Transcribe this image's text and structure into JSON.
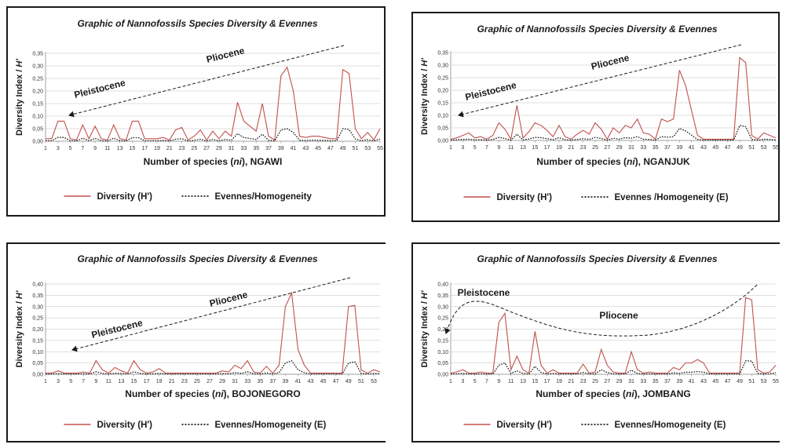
{
  "chart_data": [
    {
      "type": "line",
      "title": "Graphic of Nannofossils  Species Diversity & Evennes",
      "xlabel_prefix": "Number of species (",
      "xlabel_var": "ni",
      "xlabel_suffix": "),  NGAWI",
      "ylabel_prefix": "Diversity Index / ",
      "ylabel_var": "H'",
      "ylim": [
        0,
        0.35
      ],
      "yticks": [
        "0,00",
        "0,05",
        "0,10",
        "0,15",
        "0,20",
        "0,25",
        "0,30",
        "0,35"
      ],
      "xrange": [
        1,
        55
      ],
      "xticks": [
        "1",
        "3",
        "5",
        "7",
        "9",
        "11",
        "13",
        "15",
        "17",
        "19",
        "21",
        "23",
        "25",
        "27",
        "29",
        "31",
        "33",
        "35",
        "37",
        "39",
        "41",
        "43",
        "45",
        "47",
        "49",
        "51",
        "53",
        "55"
      ],
      "annotations": [
        "Pleistocene",
        "Pliocene"
      ],
      "legend": [
        "Diversity (H')",
        "Evennes/Homogeneity"
      ],
      "x": [
        1,
        2,
        3,
        4,
        5,
        6,
        7,
        8,
        9,
        10,
        11,
        12,
        13,
        14,
        15,
        16,
        17,
        18,
        19,
        20,
        21,
        22,
        23,
        24,
        25,
        26,
        27,
        28,
        29,
        30,
        31,
        32,
        33,
        34,
        35,
        36,
        37,
        38,
        39,
        40,
        41,
        42,
        43,
        44,
        45,
        46,
        47,
        48,
        49,
        50,
        51,
        52,
        53,
        54,
        55
      ],
      "series": [
        {
          "name": "Diversity (H')",
          "values": [
            0.01,
            0.01,
            0.08,
            0.08,
            0.01,
            0.005,
            0.065,
            0.01,
            0.06,
            0.01,
            0.005,
            0.065,
            0.01,
            0.005,
            0.08,
            0.08,
            0.01,
            0.01,
            0.01,
            0.015,
            0.005,
            0.045,
            0.055,
            0.005,
            0.02,
            0.045,
            0.005,
            0.04,
            0.01,
            0.04,
            0.02,
            0.155,
            0.08,
            0.06,
            0.04,
            0.15,
            0.02,
            0.005,
            0.26,
            0.295,
            0.2,
            0.02,
            0.015,
            0.02,
            0.02,
            0.015,
            0.01,
            0.01,
            0.285,
            0.27,
            0.05,
            0.01,
            0.035,
            0.005,
            0.05
          ]
        },
        {
          "name": "Evennes/Homogeneity",
          "values": [
            0.002,
            0.002,
            0.015,
            0.015,
            0.002,
            0.001,
            0.012,
            0.002,
            0.011,
            0.002,
            0.001,
            0.012,
            0.002,
            0.001,
            0.014,
            0.014,
            0.002,
            0.002,
            0.002,
            0.003,
            0.001,
            0.008,
            0.01,
            0.001,
            0.004,
            0.008,
            0.001,
            0.007,
            0.002,
            0.007,
            0.004,
            0.03,
            0.015,
            0.011,
            0.007,
            0.028,
            0.004,
            0.001,
            0.045,
            0.05,
            0.035,
            0.004,
            0.003,
            0.004,
            0.004,
            0.003,
            0.002,
            0.002,
            0.05,
            0.047,
            0.009,
            0.002,
            0.006,
            0.001,
            0.009
          ]
        }
      ]
    },
    {
      "type": "line",
      "title": "Graphic of Nannofossils  Species Diversity & Evennes",
      "xlabel_prefix": "Number of species (",
      "xlabel_var": "ni",
      "xlabel_suffix": "), NGANJUK",
      "ylabel_prefix": "Diversity Index / ",
      "ylabel_var": "H'",
      "ylim": [
        0,
        0.35
      ],
      "yticks": [
        "0,00",
        "0,05",
        "0,10",
        "0,15",
        "0,20",
        "0,25",
        "0,30",
        "0,35"
      ],
      "xrange": [
        1,
        55
      ],
      "xticks": [
        "1",
        "3",
        "5",
        "7",
        "9",
        "11",
        "13",
        "15",
        "17",
        "19",
        "21",
        "23",
        "25",
        "27",
        "29",
        "31",
        "33",
        "35",
        "37",
        "39",
        "41",
        "43",
        "45",
        "47",
        "49",
        "51",
        "53",
        "55"
      ],
      "annotations": [
        "Pleistocene",
        "Pliocene"
      ],
      "legend": [
        "Diversity (H')",
        "Evennes /Homogeneity (E)"
      ],
      "x": [
        1,
        2,
        3,
        4,
        5,
        6,
        7,
        8,
        9,
        10,
        11,
        12,
        13,
        14,
        15,
        16,
        17,
        18,
        19,
        20,
        21,
        22,
        23,
        24,
        25,
        26,
        27,
        28,
        29,
        30,
        31,
        32,
        33,
        34,
        35,
        36,
        37,
        38,
        39,
        40,
        41,
        42,
        43,
        44,
        45,
        46,
        47,
        48,
        49,
        50,
        51,
        52,
        53,
        54,
        55
      ],
      "series": [
        {
          "name": "Diversity (H')",
          "values": [
            0.005,
            0.01,
            0.02,
            0.03,
            0.01,
            0.015,
            0.005,
            0.02,
            0.07,
            0.045,
            0.005,
            0.14,
            0.01,
            0.035,
            0.07,
            0.06,
            0.04,
            0.015,
            0.06,
            0.015,
            0.005,
            0.025,
            0.04,
            0.025,
            0.07,
            0.045,
            0.005,
            0.05,
            0.03,
            0.06,
            0.05,
            0.085,
            0.03,
            0.025,
            0.005,
            0.085,
            0.075,
            0.085,
            0.28,
            0.22,
            0.12,
            0.02,
            0.005,
            0.005,
            0.005,
            0.005,
            0.005,
            0.005,
            0.33,
            0.31,
            0.02,
            0.005,
            0.03,
            0.02,
            0.01
          ]
        },
        {
          "name": "Evennes /Homogeneity (E)",
          "values": [
            0.001,
            0.002,
            0.004,
            0.005,
            0.002,
            0.003,
            0.001,
            0.004,
            0.012,
            0.008,
            0.001,
            0.025,
            0.002,
            0.006,
            0.012,
            0.011,
            0.007,
            0.003,
            0.011,
            0.003,
            0.001,
            0.004,
            0.007,
            0.004,
            0.012,
            0.008,
            0.001,
            0.009,
            0.005,
            0.011,
            0.009,
            0.015,
            0.005,
            0.004,
            0.001,
            0.015,
            0.013,
            0.015,
            0.048,
            0.038,
            0.021,
            0.004,
            0.001,
            0.001,
            0.001,
            0.001,
            0.001,
            0.001,
            0.06,
            0.055,
            0.004,
            0.001,
            0.005,
            0.004,
            0.002
          ]
        }
      ]
    },
    {
      "type": "line",
      "title": "Graphic of Nannofossils  Species Diversity & Evennes",
      "xlabel_prefix": "Number of species (",
      "xlabel_var": "ni",
      "xlabel_suffix": "), BOJONEGORO",
      "ylabel_prefix": "Diversity Index / ",
      "ylabel_var": "H'",
      "ylim": [
        0,
        0.4
      ],
      "yticks": [
        "0,00",
        "0,05",
        "0,10",
        "0,15",
        "0,20",
        "0,25",
        "0,30",
        "0,35",
        "0,40"
      ],
      "xrange": [
        1,
        54
      ],
      "xticks": [
        "1",
        "3",
        "5",
        "7",
        "9",
        "11",
        "13",
        "15",
        "17",
        "19",
        "21",
        "23",
        "25",
        "27",
        "29",
        "31",
        "33",
        "35",
        "37",
        "39",
        "41",
        "43",
        "45",
        "47",
        "49",
        "51",
        "53"
      ],
      "annotations": [
        "Pleistocene",
        "Pliocene"
      ],
      "legend": [
        "Diversity (H')",
        "Evennes/Homogeneity (E)"
      ],
      "x": [
        1,
        2,
        3,
        4,
        5,
        6,
        7,
        8,
        9,
        10,
        11,
        12,
        13,
        14,
        15,
        16,
        17,
        18,
        19,
        20,
        21,
        22,
        23,
        24,
        25,
        26,
        27,
        28,
        29,
        30,
        31,
        32,
        33,
        34,
        35,
        36,
        37,
        38,
        39,
        40,
        41,
        42,
        43,
        44,
        45,
        46,
        47,
        48,
        49,
        50,
        51,
        52,
        53,
        54
      ],
      "series": [
        {
          "name": "Diversity (H')",
          "values": [
            0.005,
            0.005,
            0.015,
            0.005,
            0.005,
            0.005,
            0.01,
            0.005,
            0.06,
            0.02,
            0.005,
            0.03,
            0.015,
            0.005,
            0.06,
            0.02,
            0.005,
            0.01,
            0.025,
            0.005,
            0.005,
            0.005,
            0.005,
            0.005,
            0.005,
            0.005,
            0.005,
            0.005,
            0.015,
            0.01,
            0.04,
            0.025,
            0.06,
            0.01,
            0.005,
            0.035,
            0.005,
            0.04,
            0.3,
            0.36,
            0.11,
            0.04,
            0.005,
            0.005,
            0.005,
            0.005,
            0.005,
            0.005,
            0.3,
            0.305,
            0.02,
            0.005,
            0.02,
            0.01
          ]
        },
        {
          "name": "Evennes/Homogeneity (E)",
          "values": [
            0.001,
            0.001,
            0.003,
            0.001,
            0.001,
            0.001,
            0.002,
            0.001,
            0.011,
            0.004,
            0.001,
            0.005,
            0.003,
            0.001,
            0.011,
            0.004,
            0.001,
            0.002,
            0.004,
            0.001,
            0.001,
            0.001,
            0.001,
            0.001,
            0.001,
            0.001,
            0.001,
            0.001,
            0.003,
            0.002,
            0.007,
            0.004,
            0.011,
            0.002,
            0.001,
            0.006,
            0.001,
            0.007,
            0.05,
            0.06,
            0.02,
            0.007,
            0.001,
            0.001,
            0.001,
            0.001,
            0.001,
            0.001,
            0.05,
            0.055,
            0.004,
            0.001,
            0.004,
            0.002
          ]
        }
      ]
    },
    {
      "type": "line",
      "title": "Graphic of Nannofossils  Species Diversity & Evennes",
      "xlabel_prefix": "Number of species (",
      "xlabel_var": "ni",
      "xlabel_suffix": "), JOMBANG",
      "ylabel_prefix": "Diversity Index / ",
      "ylabel_var": "H'",
      "ylim": [
        0,
        0.4
      ],
      "yticks": [
        "0,00",
        "0,05",
        "0,10",
        "0,15",
        "0,20",
        "0,25",
        "0,30",
        "0,35",
        "0,40"
      ],
      "xrange": [
        1,
        55
      ],
      "xticks": [
        "1",
        "3",
        "5",
        "7",
        "9",
        "11",
        "13",
        "15",
        "17",
        "19",
        "21",
        "23",
        "25",
        "27",
        "29",
        "31",
        "33",
        "35",
        "37",
        "39",
        "41",
        "43",
        "45",
        "47",
        "49",
        "51",
        "53",
        "55"
      ],
      "annotations": [
        "Pleistocene",
        "Pliocene"
      ],
      "legend": [
        "Diversity (H')",
        "Evennes/Homogeneity (E)"
      ],
      "x": [
        1,
        2,
        3,
        4,
        5,
        6,
        7,
        8,
        9,
        10,
        11,
        12,
        13,
        14,
        15,
        16,
        17,
        18,
        19,
        20,
        21,
        22,
        23,
        24,
        25,
        26,
        27,
        28,
        29,
        30,
        31,
        32,
        33,
        34,
        35,
        36,
        37,
        38,
        39,
        40,
        41,
        42,
        43,
        44,
        45,
        46,
        47,
        48,
        49,
        50,
        51,
        52,
        53,
        54,
        55
      ],
      "series": [
        {
          "name": "Diversity (H')",
          "values": [
            0.005,
            0.01,
            0.02,
            0.005,
            0.005,
            0.01,
            0.005,
            0.005,
            0.23,
            0.27,
            0.02,
            0.08,
            0.02,
            0.005,
            0.19,
            0.04,
            0.005,
            0.02,
            0.005,
            0.005,
            0.005,
            0.005,
            0.045,
            0.005,
            0.01,
            0.11,
            0.04,
            0.01,
            0.005,
            0.005,
            0.1,
            0.02,
            0.005,
            0.01,
            0.005,
            0.005,
            0.005,
            0.03,
            0.02,
            0.05,
            0.05,
            0.065,
            0.05,
            0.005,
            0.005,
            0.005,
            0.005,
            0.005,
            0.005,
            0.34,
            0.33,
            0.02,
            0.005,
            0.01,
            0.04
          ]
        },
        {
          "name": "Evennes/Homogeneity (E)",
          "values": [
            0.001,
            0.002,
            0.004,
            0.001,
            0.001,
            0.002,
            0.001,
            0.001,
            0.04,
            0.05,
            0.004,
            0.015,
            0.004,
            0.001,
            0.035,
            0.008,
            0.001,
            0.004,
            0.001,
            0.001,
            0.001,
            0.001,
            0.008,
            0.001,
            0.002,
            0.02,
            0.008,
            0.002,
            0.001,
            0.001,
            0.018,
            0.004,
            0.001,
            0.002,
            0.001,
            0.001,
            0.001,
            0.006,
            0.004,
            0.009,
            0.009,
            0.012,
            0.009,
            0.001,
            0.001,
            0.001,
            0.001,
            0.001,
            0.001,
            0.06,
            0.058,
            0.004,
            0.001,
            0.002,
            0.007
          ]
        }
      ]
    }
  ],
  "colors": {
    "diversity": "#c0504d",
    "evenness": "#1a1a1a",
    "grid": "#bfbfbf",
    "axis": "#8c8c8c",
    "frame": "#1a1a1a"
  }
}
